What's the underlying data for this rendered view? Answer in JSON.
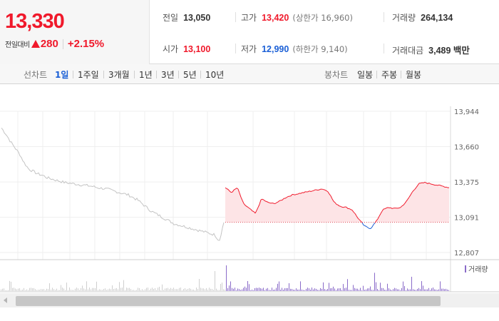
{
  "quote": {
    "current_price": "13,330",
    "change_label": "전일대비",
    "change_amount": "280",
    "change_rate": "+2.15%",
    "up_color": "#f0192b",
    "down_color": "#1a5fd6"
  },
  "stats": {
    "prev_close": {
      "label": "전일",
      "value": "13,050"
    },
    "high": {
      "label": "고가",
      "value": "13,420",
      "sub": "(상한가 16,960)"
    },
    "volume": {
      "label": "거래량",
      "value": "264,134"
    },
    "open": {
      "label": "시가",
      "value": "13,100"
    },
    "low": {
      "label": "저가",
      "value": "12,990",
      "sub": "(하한가 9,140)"
    },
    "trade_value": {
      "label": "거래대금",
      "value": "3,489 백만"
    }
  },
  "toolbar": {
    "line_chart_label": "선차트",
    "periods": [
      "1일",
      "1주일",
      "3개월",
      "1년",
      "3년",
      "5년",
      "10년"
    ],
    "active_period": "1일",
    "candle_chart_label": "봉차트",
    "candles": [
      "일봉",
      "주봉",
      "월봉"
    ]
  },
  "chart_data": {
    "type": "line",
    "y_ticks": [
      "13,944",
      "13,660",
      "13,375",
      "13,091",
      "12,807"
    ],
    "ylim": [
      12807,
      13944
    ],
    "prev_close": 13050,
    "volume_legend": "거래량",
    "series": [
      {
        "values": [
          13810,
          13760,
          13700,
          13650,
          13600,
          13530,
          13480,
          13460,
          13440,
          13430,
          13410,
          13400,
          13390,
          13380,
          13370,
          13365,
          13360,
          13355,
          13350,
          13345,
          13340,
          13330,
          13325,
          13320,
          13310,
          13300,
          13290,
          13280,
          13270,
          13250,
          13230,
          13200,
          13170,
          13140,
          13120,
          13100,
          13080,
          13060,
          13040,
          13030,
          13020,
          13010,
          13000,
          12990,
          12980,
          12970,
          12960,
          12950,
          12900,
          13050
        ]
      },
      {
        "values": [
          13330,
          13290,
          13330,
          13200,
          13160,
          13120,
          13240,
          13210,
          13200,
          13220,
          13250,
          13270,
          13280,
          13290,
          13300,
          13310,
          13320,
          13300,
          13210,
          13180,
          13170,
          13150,
          13080,
          13020,
          13000,
          13060,
          13150,
          13170,
          13160,
          13170,
          13220,
          13300,
          13360,
          13370,
          13360,
          13350,
          13340,
          13330
        ]
      }
    ],
    "grid": true
  }
}
